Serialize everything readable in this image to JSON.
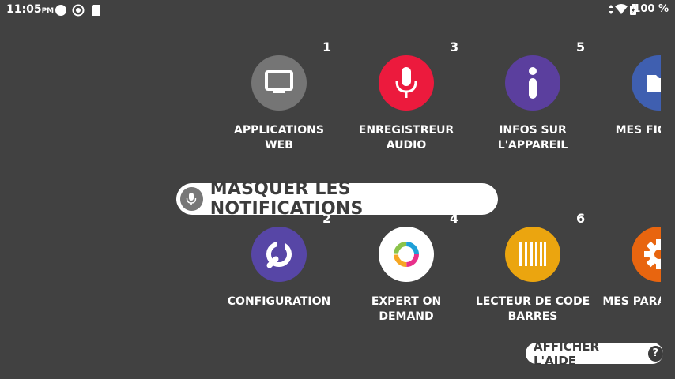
{
  "status_bar": {
    "time": "11:05",
    "ampm": "PM",
    "battery_percent": "100 %"
  },
  "tiles": [
    {
      "number": "1",
      "label": "APPLICATIONS\nWEB",
      "icon": "monitor-icon",
      "color": "#757575"
    },
    {
      "number": "3",
      "label": "ENREGISTREUR\nAUDIO",
      "icon": "microphone-icon",
      "color": "#EC1A3D"
    },
    {
      "number": "5",
      "label": "INFOS SUR\nL'APPAREIL",
      "icon": "info-icon",
      "color": "#5B3F9E"
    },
    {
      "number": "",
      "label": "MES FICHIERS",
      "icon": "folder-icon",
      "color": "#3F5FB0"
    },
    {
      "number": "2",
      "label": "CONFIGURATION",
      "icon": "wrench-icon",
      "color": "#5746A6"
    },
    {
      "number": "4",
      "label": "EXPERT ON\nDEMAND",
      "icon": "expert-ring-icon",
      "color": "#FFFFFF"
    },
    {
      "number": "6",
      "label": "LECTEUR DE CODE\nBARRES",
      "icon": "barcode-icon",
      "color": "#EBA50F"
    },
    {
      "number": "",
      "label": "MES PARAMÈTRES",
      "icon": "gear-icon",
      "color": "#E8650F"
    }
  ],
  "voice_hint": {
    "label": "MASQUER LES NOTIFICATIONS",
    "icon": "microphone-icon"
  },
  "help_button": {
    "label": "AFFICHER L'AIDE",
    "icon_glyph": "?"
  }
}
